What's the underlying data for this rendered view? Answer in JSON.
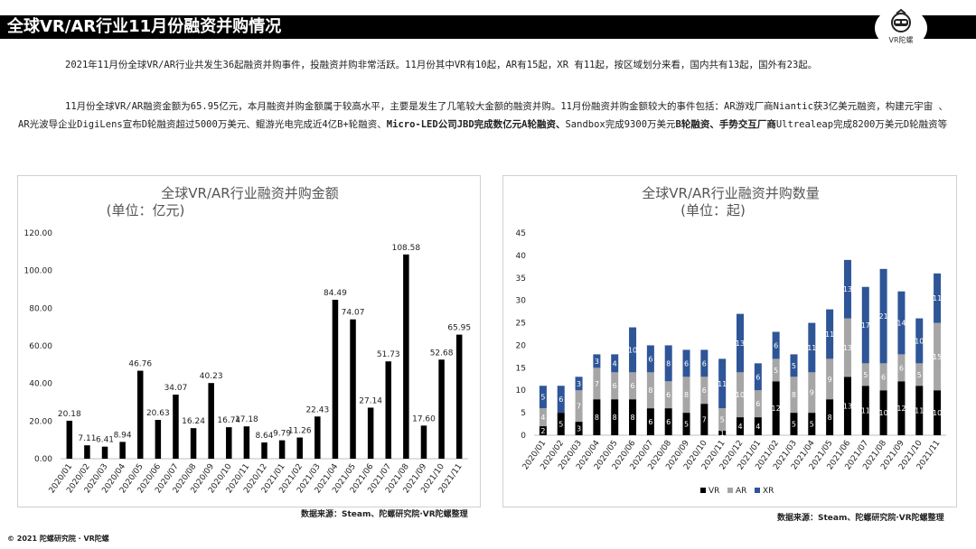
{
  "header": {
    "title": "全球VR/AR行业11月份融资并购情况",
    "logo_text": "VR陀螺"
  },
  "body": {
    "paragraph1": "2021年11月份全球VR/AR行业共发生36起融资并购事件，投融资并购非常活跃。11月份其中VR有10起，AR有15起，XR 有11起，按区域划分来看，国内共有13起，国外有23起。",
    "paragraph2_a": "11月份全球VR/AR融资金额为65.95亿元，本月融资并购金额属于较高水平，主要是发生了几笔较大金额的融资并购。11月份融资并购金额较大的事件包括：AR游戏厂商Niantic获3亿美元融资，构建元宇宙 、AR光波导企业DigiLens宣布D轮融资超过5000万美元、鲲游光电完成近4亿B+轮融资、",
    "paragraph2_b": "Micro-LED公司JBD完成数亿元A轮融资、",
    "paragraph2_c": "Sandbox完成9300万美元",
    "paragraph2_d": "B轮融资、手势交互厂商",
    "paragraph2_e": "Ultrealeap完成8200万美元D轮融资等"
  },
  "chart_data": [
    {
      "type": "bar",
      "title": "全球VR/AR行业融资并购金额",
      "subtitle": "(单位：亿元)",
      "categories": [
        "2020/01",
        "2020/02",
        "2020/03",
        "2020/04",
        "2020/05",
        "2020/06",
        "2020/07",
        "2020/08",
        "2020/09",
        "2020/10",
        "2020/11",
        "2020/12",
        "2021/01",
        "2021/02",
        "2021/03",
        "2021/04",
        "2021/05",
        "2021/06",
        "2021/07",
        "2021/08",
        "2021/09",
        "2021/10",
        "2021/11"
      ],
      "values": [
        20.18,
        7.11,
        6.41,
        8.94,
        46.76,
        20.63,
        34.07,
        16.24,
        40.23,
        16.74,
        17.18,
        8.64,
        9.79,
        11.26,
        22.43,
        84.49,
        74.07,
        27.14,
        51.73,
        108.58,
        17.6,
        52.68,
        65.95
      ],
      "value_labels": [
        "20.18",
        "7.11",
        "6.41",
        "8.94",
        "46.76",
        "20.63",
        "34.07",
        "16.24",
        "40.23",
        "16.74",
        "17.18",
        "8.64",
        "9.79",
        "11.26",
        "22.43",
        "84.49",
        "74.07",
        "27.14",
        "51.73",
        "108.58",
        "17.60",
        "52.68",
        "65.95"
      ],
      "ylim": [
        0,
        120
      ],
      "yticks": [
        "0.00",
        "20.00",
        "40.00",
        "60.00",
        "80.00",
        "100.00",
        "120.00"
      ],
      "bar_color": "#000000",
      "grid": false,
      "source": "数据来源：Steam、陀螺研究院·VR陀螺整理"
    },
    {
      "type": "bar",
      "stacked": true,
      "title": "全球VR/AR行业融资并购数量",
      "subtitle": "(单位：起)",
      "categories": [
        "2020/01",
        "2020/02",
        "2020/03",
        "2020/04",
        "2020/05",
        "2020/06",
        "2020/07",
        "2020/08",
        "2020/09",
        "2020/10",
        "2020/11",
        "2020/12",
        "2021/01",
        "2021/02",
        "2021/03",
        "2021/04",
        "2021/05",
        "2021/06",
        "2021/07",
        "2021/08",
        "2021/09",
        "2021/10",
        "2021/11"
      ],
      "series": [
        {
          "name": "VR",
          "color": "#000000",
          "values": [
            2,
            5,
            3,
            8,
            8,
            8,
            6,
            6,
            5,
            7,
            1,
            4,
            4,
            12,
            5,
            5,
            8,
            13,
            11,
            10,
            12,
            11,
            10
          ]
        },
        {
          "name": "AR",
          "color": "#a6a6a6",
          "values": [
            4,
            0,
            7,
            7,
            6,
            6,
            8,
            6,
            8,
            6,
            5,
            10,
            6,
            5,
            8,
            9,
            9,
            13,
            5,
            6,
            6,
            5,
            15
          ]
        },
        {
          "name": "XR",
          "color": "#2e5597",
          "values": [
            5,
            6,
            3,
            3,
            4,
            10,
            6,
            8,
            6,
            6,
            11,
            13,
            6,
            6,
            5,
            11,
            11,
            13,
            17,
            21,
            14,
            10,
            11
          ]
        }
      ],
      "ylim": [
        0,
        45
      ],
      "yticks": [
        "0",
        "5",
        "10",
        "15",
        "20",
        "25",
        "30",
        "35",
        "40",
        "45"
      ],
      "legend": "bottom",
      "grid": false,
      "source": "数据来源：Steam、陀螺研究院·VR陀螺整理"
    }
  ],
  "footer": {
    "copyright": "© 2021 陀螺研究院 · VR陀螺"
  }
}
